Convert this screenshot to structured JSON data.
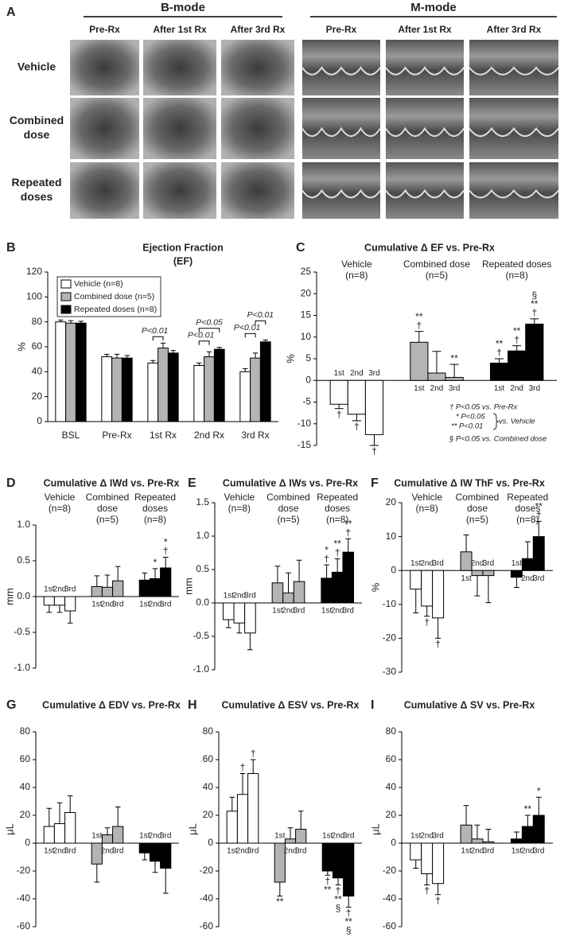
{
  "panel_a": {
    "label": "A",
    "groups": [
      "B-mode",
      "M-mode"
    ],
    "columns": [
      "Pre-Rx",
      "After 1st Rx",
      "After 3rd Rx",
      "Pre-Rx",
      "After 1st Rx",
      "After 3rd Rx"
    ],
    "rows": [
      [
        "Vehicle"
      ],
      [
        "Combined",
        "dose"
      ],
      [
        "Repeated",
        "doses"
      ]
    ]
  },
  "chart_data": [
    {
      "type": "bar",
      "label": "B",
      "title": "Ejection Fraction",
      "subtitle": "(EF)",
      "ylabel": "%",
      "categories": [
        "BSL",
        "Pre-Rx",
        "1st Rx",
        "2nd Rx",
        "3rd Rx"
      ],
      "series": [
        {
          "name": "Vehicle (n=8)",
          "color": "#ffffff",
          "values": [
            80,
            52,
            47,
            45,
            40
          ],
          "errors": [
            1.5,
            2,
            2,
            2,
            2.5
          ]
        },
        {
          "name": "Combined dose (n=5)",
          "color": "#b4b4b4",
          "values": [
            79,
            51,
            59,
            52,
            51
          ],
          "errors": [
            2,
            3,
            4,
            4,
            4
          ]
        },
        {
          "name": "Repeated doses (n=8)",
          "color": "#000000",
          "values": [
            79,
            51,
            55,
            58,
            64
          ],
          "errors": [
            1.5,
            2,
            2,
            1.5,
            1.5
          ]
        }
      ],
      "annotations": [
        "P<0.01",
        "P<0.01",
        "P<0.05",
        "P<0.01",
        "P<0.01"
      ],
      "ylim": [
        0,
        120
      ],
      "yticks": [
        0,
        20,
        40,
        60,
        80,
        100,
        120
      ],
      "legend": "upper left"
    },
    {
      "type": "grouped",
      "label": "C",
      "title": "Cumulative Δ EF vs. Pre-Rx",
      "ylabel": "%",
      "categories": [
        "1st",
        "2nd",
        "3rd"
      ],
      "series": [
        {
          "header": [
            "Vehicle",
            "(n=8)"
          ],
          "color": "#ffffff",
          "values": [
            -5.5,
            -7.8,
            -12.5
          ],
          "errors": [
            1,
            1.5,
            2.5
          ],
          "marks": [
            [
              "†"
            ],
            [
              "†"
            ],
            [
              "†"
            ]
          ]
        },
        {
          "header": [
            "Combined dose",
            "(n=5)"
          ],
          "color": "#b4b4b4",
          "values": [
            8.8,
            1.7,
            0.7
          ],
          "errors": [
            2.5,
            5,
            3
          ],
          "marks": [
            [
              "**",
              "†"
            ],
            null,
            [
              "**"
            ]
          ]
        },
        {
          "header": [
            "Repeated doses",
            "(n=8)"
          ],
          "color": "#000000",
          "values": [
            4,
            6.8,
            13
          ],
          "errors": [
            1,
            1.2,
            1.2
          ],
          "marks": [
            [
              "**",
              "†"
            ],
            [
              "**",
              "†"
            ],
            [
              "§",
              "**",
              "†"
            ]
          ]
        }
      ],
      "notes": [
        "† P<0.05 vs. Pre-Rx",
        "* P<0.05",
        "** P<0.01",
        "vs. Vehicle",
        "§ P<0.05 vs. Combined dose"
      ],
      "ylim": [
        -15,
        25
      ],
      "yticks": [
        -15,
        -10,
        -5,
        0,
        5,
        10,
        15,
        20,
        25
      ]
    },
    {
      "type": "grouped",
      "label": "D",
      "title": "Cumulative Δ IWd vs. Pre-Rx",
      "ylabel": "mm",
      "categories": [
        "1st",
        "2nd",
        "3rd"
      ],
      "series": [
        {
          "header": [
            "Vehicle",
            "(n=8)"
          ],
          "color": "#ffffff",
          "values": [
            -0.12,
            -0.12,
            -0.2
          ],
          "errors": [
            0.1,
            0.1,
            0.17
          ],
          "marks": [
            null,
            null,
            null
          ]
        },
        {
          "header": [
            "Combined",
            "dose",
            "(n=5)"
          ],
          "color": "#b4b4b4",
          "values": [
            0.14,
            0.13,
            0.22
          ],
          "errors": [
            0.15,
            0.17,
            0.2
          ],
          "marks": [
            null,
            null,
            null
          ]
        },
        {
          "header": [
            "Repeated",
            "doses",
            "(n=8)"
          ],
          "color": "#000000",
          "values": [
            0.23,
            0.25,
            0.4
          ],
          "errors": [
            0.1,
            0.14,
            0.15
          ],
          "marks": [
            null,
            [
              "*"
            ],
            [
              "*",
              "†"
            ]
          ]
        }
      ],
      "ylim": [
        -1,
        1
      ],
      "yticks": [
        {
          "value": -1,
          "label": "-1.0"
        },
        -0.5,
        {
          "value": 0,
          "label": "0.0"
        },
        0.5,
        {
          "value": 1,
          "label": "1.0"
        }
      ]
    },
    {
      "type": "grouped",
      "label": "E",
      "title": "Cumulative Δ IWs vs. Pre-Rx",
      "ylabel": "mm",
      "categories": [
        "1st",
        "2nd",
        "3rd"
      ],
      "series": [
        {
          "header": [
            "Vehicle",
            "(n=8)"
          ],
          "color": "#ffffff",
          "values": [
            -0.25,
            -0.3,
            -0.45
          ],
          "errors": [
            0.12,
            0.15,
            0.25
          ],
          "marks": [
            null,
            null,
            null
          ]
        },
        {
          "header": [
            "Combined",
            "dose",
            "(n=5)"
          ],
          "color": "#b4b4b4",
          "values": [
            0.3,
            0.15,
            0.32
          ],
          "errors": [
            0.25,
            0.3,
            0.32
          ],
          "marks": [
            null,
            null,
            null
          ]
        },
        {
          "header": [
            "Repeated",
            "doses",
            "(n=8)"
          ],
          "color": "#000000",
          "values": [
            0.37,
            0.46,
            0.76
          ],
          "errors": [
            0.2,
            0.2,
            0.2
          ],
          "marks": [
            [
              "*",
              "†"
            ],
            [
              "**",
              "†"
            ],
            [
              "**",
              "†"
            ]
          ]
        }
      ],
      "ylim": [
        -1,
        1.5
      ],
      "yticks": [
        {
          "value": -1,
          "label": "-1.0"
        },
        -0.5,
        {
          "value": 0,
          "label": "0.0"
        },
        0.5,
        {
          "value": 1,
          "label": "1.0"
        },
        1.5
      ]
    },
    {
      "type": "grouped",
      "label": "F",
      "title": "Cumulative Δ IW ThF vs. Pre-Rx",
      "ylabel": "%",
      "categories": [
        "1st",
        "2nd",
        "3rd"
      ],
      "series": [
        {
          "header": [
            "Vehicle",
            "(n=8)"
          ],
          "color": "#ffffff",
          "values": [
            -5.5,
            -10.5,
            -14
          ],
          "errors": [
            7,
            3,
            6
          ],
          "marks": [
            null,
            [
              "†"
            ],
            [
              "†"
            ]
          ]
        },
        {
          "header": [
            "Combined",
            "dose",
            "(n=5)"
          ],
          "color": "#b4b4b4",
          "values": [
            5.5,
            -1.5,
            -1.5
          ],
          "errors": [
            5,
            6,
            8
          ],
          "marks": [
            null,
            null,
            null
          ]
        },
        {
          "header": [
            "Repeated",
            "doses",
            "(n=8)"
          ],
          "color": "#000000",
          "values": [
            -2,
            3.5,
            10
          ],
          "errors": [
            3,
            5,
            4.5
          ],
          "marks": [
            null,
            null,
            [
              "**",
              "†"
            ]
          ]
        }
      ],
      "ylim": [
        -30,
        20
      ],
      "yticks": [
        -30,
        -20,
        -10,
        0,
        10,
        20
      ]
    },
    {
      "type": "grouped",
      "label": "G",
      "title": "Cumulative Δ EDV vs. Pre-Rx",
      "ylabel": "μL",
      "categories": [
        "1st",
        "2nd",
        "3rd"
      ],
      "series": [
        {
          "color": "#ffffff",
          "values": [
            12,
            14,
            22
          ],
          "errors": [
            13,
            15,
            12
          ],
          "marks": [
            null,
            null,
            null
          ]
        },
        {
          "color": "#b4b4b4",
          "values": [
            -15,
            6,
            12
          ],
          "errors": [
            13,
            5,
            14
          ],
          "marks": [
            null,
            null,
            null
          ]
        },
        {
          "color": "#000000",
          "values": [
            -7,
            -13,
            -18
          ],
          "errors": [
            5,
            8,
            18
          ],
          "marks": [
            null,
            null,
            null
          ]
        }
      ],
      "ylim": [
        -60,
        80
      ],
      "yticks": [
        -60,
        -40,
        -20,
        0,
        20,
        40,
        60,
        80
      ]
    },
    {
      "type": "grouped",
      "label": "H",
      "title": "Cumulative Δ ESV  vs. Pre-Rx",
      "ylabel": "μL",
      "categories": [
        "1st",
        "2nd",
        "3rd"
      ],
      "series": [
        {
          "color": "#ffffff",
          "values": [
            23,
            35,
            50
          ],
          "errors": [
            10,
            15,
            10
          ],
          "marks": [
            null,
            [
              "†"
            ],
            [
              "†"
            ]
          ]
        },
        {
          "color": "#b4b4b4",
          "values": [
            -28,
            3,
            10
          ],
          "errors": [
            10,
            8,
            13
          ],
          "marks": [
            [
              "**"
            ],
            null,
            null
          ]
        },
        {
          "color": "#000000",
          "values": [
            -20,
            -25,
            -38
          ],
          "errors": [
            3,
            5,
            8
          ],
          "marks": [
            [
              "†",
              "**"
            ],
            [
              "†",
              "**",
              "§"
            ],
            [
              "†",
              "**",
              "§"
            ]
          ]
        }
      ],
      "ylim": [
        -60,
        80
      ],
      "yticks": [
        -60,
        -40,
        -20,
        0,
        20,
        40,
        60,
        80
      ]
    },
    {
      "type": "grouped",
      "label": "I",
      "title": "Cumulative Δ SV vs. Pre-Rx",
      "ylabel": "μL",
      "categories": [
        "1st",
        "2nd",
        "3rd"
      ],
      "series": [
        {
          "color": "#ffffff",
          "values": [
            -12,
            -22,
            -29
          ],
          "errors": [
            6,
            8,
            8
          ],
          "marks": [
            null,
            [
              "†"
            ],
            [
              "†"
            ]
          ]
        },
        {
          "color": "#b4b4b4",
          "values": [
            13,
            3,
            1
          ],
          "errors": [
            14,
            10,
            9
          ],
          "marks": [
            null,
            null,
            null
          ]
        },
        {
          "color": "#000000",
          "values": [
            3,
            12,
            20
          ],
          "errors": [
            5,
            8,
            13
          ],
          "marks": [
            null,
            [
              "**"
            ],
            [
              "*"
            ]
          ]
        }
      ],
      "ylim": [
        -60,
        80
      ],
      "yticks": [
        -60,
        -40,
        -20,
        0,
        20,
        40,
        60,
        80
      ]
    }
  ]
}
